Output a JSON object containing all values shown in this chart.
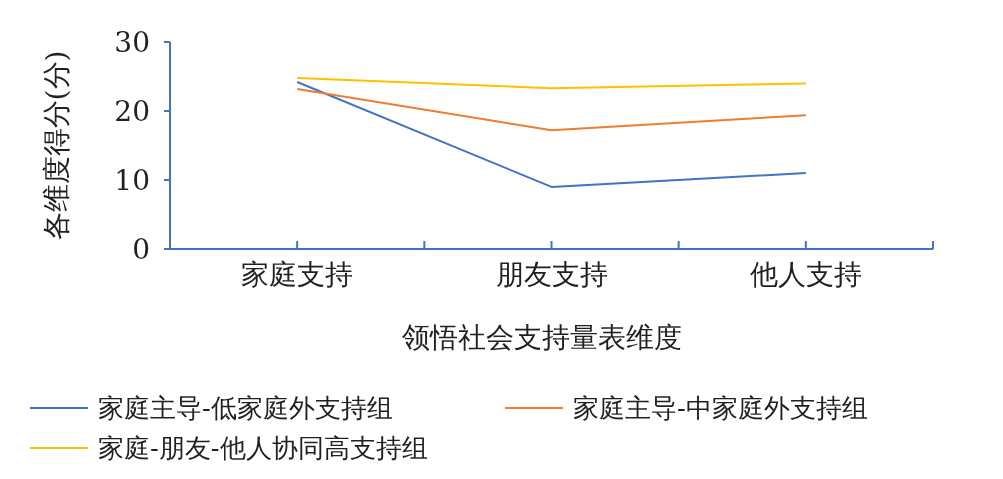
{
  "chart_data": {
    "type": "line",
    "xlabel": "领悟社会支持量表维度",
    "ylabel": "各维度得分(分)",
    "categories": [
      "家庭支持",
      "朋友支持",
      "他人支持"
    ],
    "series": [
      {
        "name": "家庭主导-低家庭外支持组",
        "color": "#4472c4",
        "values": [
          24.2,
          9.0,
          11.0
        ]
      },
      {
        "name": "家庭主导-中家庭外支持组",
        "color": "#ed7d31",
        "values": [
          23.2,
          17.2,
          19.4
        ]
      },
      {
        "name": "家庭-朋友-他人协同高支持组",
        "color": "#ffc000",
        "values": [
          24.8,
          23.3,
          24.0
        ]
      }
    ],
    "ylim": [
      0,
      30
    ],
    "yticks": [
      0,
      10,
      20,
      30
    ],
    "grid": false,
    "legend": "bottom",
    "marker": "none",
    "line_style": "solid"
  }
}
